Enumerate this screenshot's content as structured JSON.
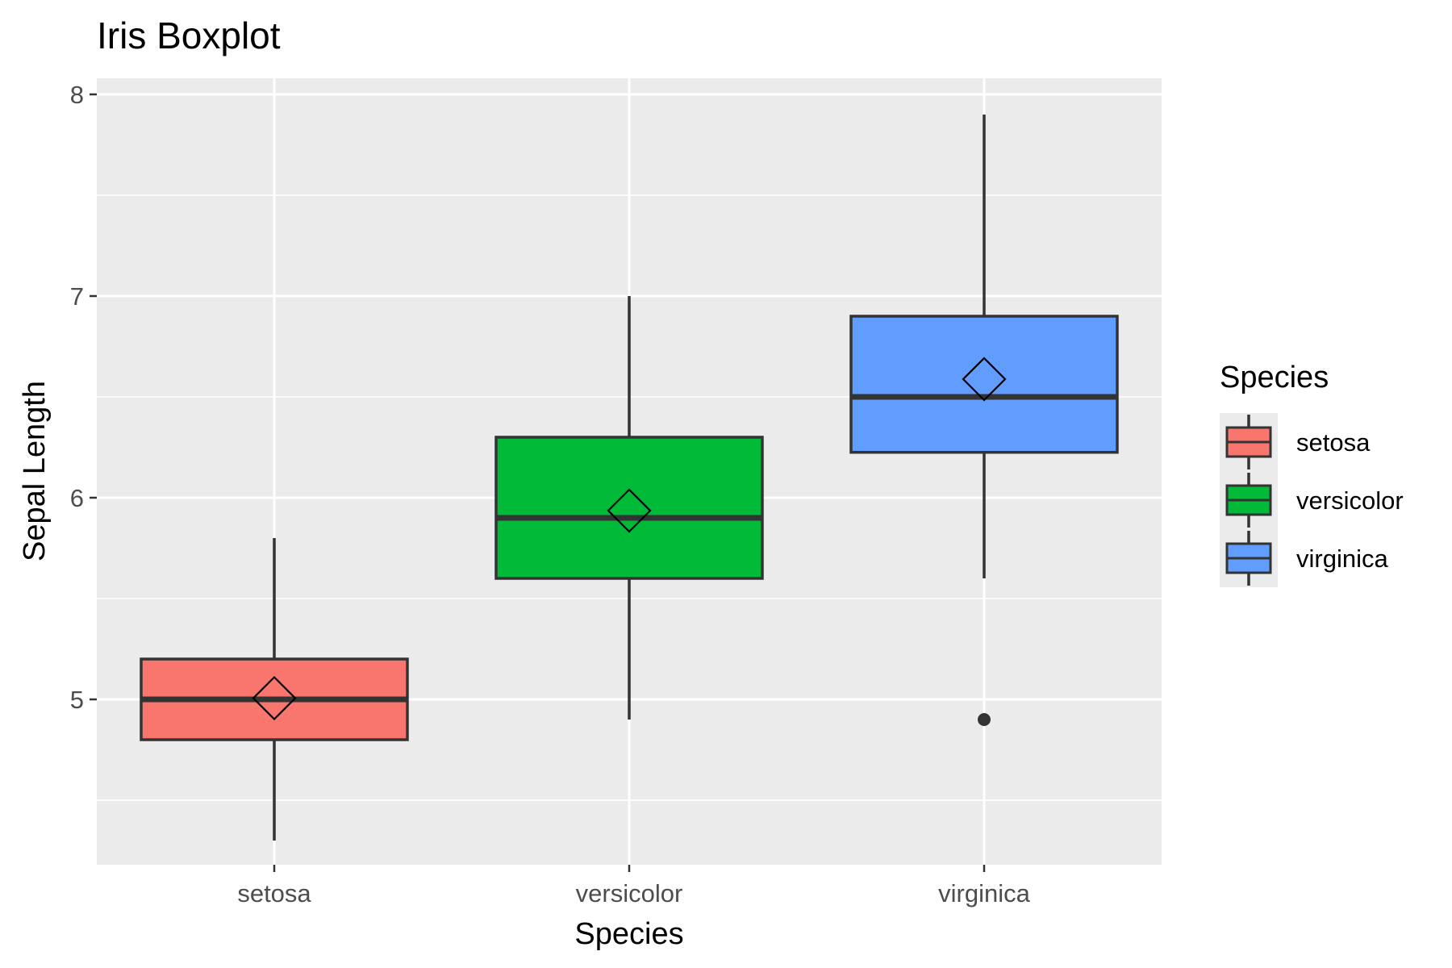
{
  "chart_data": {
    "type": "boxplot",
    "title": "Iris Boxplot",
    "xlabel": "Species",
    "ylabel": "Sepal Length",
    "categories": [
      "setosa",
      "versicolor",
      "virginica"
    ],
    "ylim": [
      4.18,
      8.08
    ],
    "yticks": [
      5,
      6,
      7,
      8
    ],
    "grid": true,
    "legend": {
      "title": "Species",
      "position": "right"
    },
    "series": [
      {
        "name": "setosa",
        "color": "#F8766D",
        "whisker_low": 4.3,
        "q1": 4.8,
        "median": 5.0,
        "q3": 5.2,
        "whisker_high": 5.8,
        "mean": 5.006,
        "outliers": []
      },
      {
        "name": "versicolor",
        "color": "#00BA38",
        "whisker_low": 4.9,
        "q1": 5.6,
        "median": 5.9,
        "q3": 6.3,
        "whisker_high": 7.0,
        "mean": 5.936,
        "outliers": []
      },
      {
        "name": "virginica",
        "color": "#619CFF",
        "whisker_low": 5.6,
        "q1": 6.225,
        "median": 6.5,
        "q3": 6.9,
        "whisker_high": 7.9,
        "mean": 6.588,
        "outliers": [
          4.9
        ]
      }
    ]
  }
}
